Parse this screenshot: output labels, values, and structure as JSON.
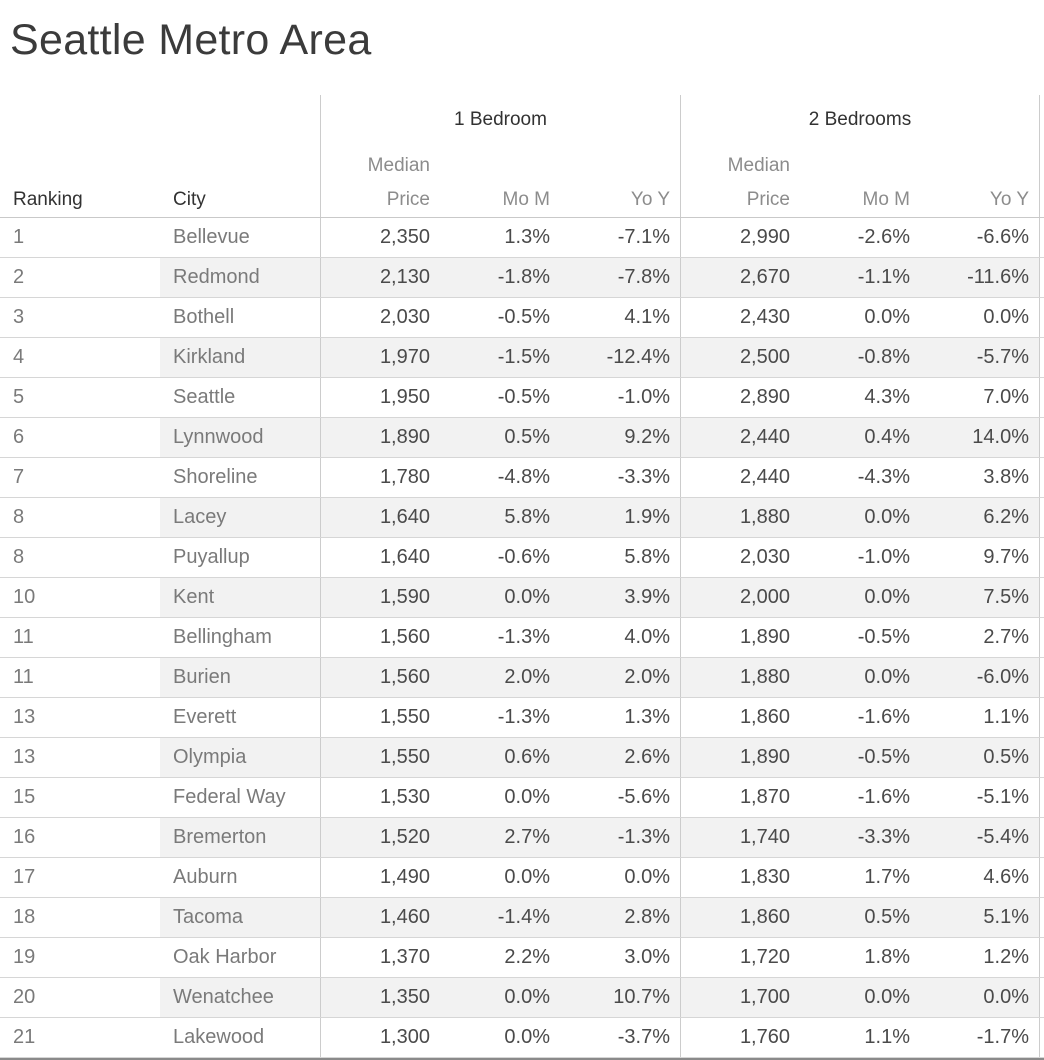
{
  "title": "Seattle Metro Area",
  "labels": {
    "ranking": "Ranking",
    "city": "City",
    "median": "Median",
    "price": "Price",
    "mom": "Mo M",
    "yoy": "Yo Y"
  },
  "chart_data": {
    "type": "table",
    "title": "Seattle Metro Area",
    "column_groups": [
      {
        "label": "1 Bedroom",
        "columns": [
          "Median Price",
          "Mo M",
          "Yo Y"
        ]
      },
      {
        "label": "2 Bedrooms",
        "columns": [
          "Median Price",
          "Mo M",
          "Yo Y"
        ]
      }
    ],
    "row_header_columns": [
      "Ranking",
      "City"
    ],
    "rows": [
      {
        "rank": "1",
        "city": "Bellevue",
        "p1": "2,350",
        "mom1": "1.3%",
        "yoy1": "-7.1%",
        "p2": "2,990",
        "mom2": "-2.6%",
        "yoy2": "-6.6%"
      },
      {
        "rank": "2",
        "city": "Redmond",
        "p1": "2,130",
        "mom1": "-1.8%",
        "yoy1": "-7.8%",
        "p2": "2,670",
        "mom2": "-1.1%",
        "yoy2": "-11.6%"
      },
      {
        "rank": "3",
        "city": "Bothell",
        "p1": "2,030",
        "mom1": "-0.5%",
        "yoy1": "4.1%",
        "p2": "2,430",
        "mom2": "0.0%",
        "yoy2": "0.0%"
      },
      {
        "rank": "4",
        "city": "Kirkland",
        "p1": "1,970",
        "mom1": "-1.5%",
        "yoy1": "-12.4%",
        "p2": "2,500",
        "mom2": "-0.8%",
        "yoy2": "-5.7%"
      },
      {
        "rank": "5",
        "city": "Seattle",
        "p1": "1,950",
        "mom1": "-0.5%",
        "yoy1": "-1.0%",
        "p2": "2,890",
        "mom2": "4.3%",
        "yoy2": "7.0%"
      },
      {
        "rank": "6",
        "city": "Lynnwood",
        "p1": "1,890",
        "mom1": "0.5%",
        "yoy1": "9.2%",
        "p2": "2,440",
        "mom2": "0.4%",
        "yoy2": "14.0%"
      },
      {
        "rank": "7",
        "city": "Shoreline",
        "p1": "1,780",
        "mom1": "-4.8%",
        "yoy1": "-3.3%",
        "p2": "2,440",
        "mom2": "-4.3%",
        "yoy2": "3.8%"
      },
      {
        "rank": "8",
        "city": "Lacey",
        "p1": "1,640",
        "mom1": "5.8%",
        "yoy1": "1.9%",
        "p2": "1,880",
        "mom2": "0.0%",
        "yoy2": "6.2%"
      },
      {
        "rank": "8",
        "city": "Puyallup",
        "p1": "1,640",
        "mom1": "-0.6%",
        "yoy1": "5.8%",
        "p2": "2,030",
        "mom2": "-1.0%",
        "yoy2": "9.7%"
      },
      {
        "rank": "10",
        "city": "Kent",
        "p1": "1,590",
        "mom1": "0.0%",
        "yoy1": "3.9%",
        "p2": "2,000",
        "mom2": "0.0%",
        "yoy2": "7.5%"
      },
      {
        "rank": "11",
        "city": "Bellingham",
        "p1": "1,560",
        "mom1": "-1.3%",
        "yoy1": "4.0%",
        "p2": "1,890",
        "mom2": "-0.5%",
        "yoy2": "2.7%"
      },
      {
        "rank": "11",
        "city": "Burien",
        "p1": "1,560",
        "mom1": "2.0%",
        "yoy1": "2.0%",
        "p2": "1,880",
        "mom2": "0.0%",
        "yoy2": "-6.0%"
      },
      {
        "rank": "13",
        "city": "Everett",
        "p1": "1,550",
        "mom1": "-1.3%",
        "yoy1": "1.3%",
        "p2": "1,860",
        "mom2": "-1.6%",
        "yoy2": "1.1%"
      },
      {
        "rank": "13",
        "city": "Olympia",
        "p1": "1,550",
        "mom1": "0.6%",
        "yoy1": "2.6%",
        "p2": "1,890",
        "mom2": "-0.5%",
        "yoy2": "0.5%"
      },
      {
        "rank": "15",
        "city": "Federal Way",
        "p1": "1,530",
        "mom1": "0.0%",
        "yoy1": "-5.6%",
        "p2": "1,870",
        "mom2": "-1.6%",
        "yoy2": "-5.1%"
      },
      {
        "rank": "16",
        "city": "Bremerton",
        "p1": "1,520",
        "mom1": "2.7%",
        "yoy1": "-1.3%",
        "p2": "1,740",
        "mom2": "-3.3%",
        "yoy2": "-5.4%"
      },
      {
        "rank": "17",
        "city": "Auburn",
        "p1": "1,490",
        "mom1": "0.0%",
        "yoy1": "0.0%",
        "p2": "1,830",
        "mom2": "1.7%",
        "yoy2": "4.6%"
      },
      {
        "rank": "18",
        "city": "Tacoma",
        "p1": "1,460",
        "mom1": "-1.4%",
        "yoy1": "2.8%",
        "p2": "1,860",
        "mom2": "0.5%",
        "yoy2": "5.1%"
      },
      {
        "rank": "19",
        "city": "Oak Harbor",
        "p1": "1,370",
        "mom1": "2.2%",
        "yoy1": "3.0%",
        "p2": "1,720",
        "mom2": "1.8%",
        "yoy2": "1.2%"
      },
      {
        "rank": "20",
        "city": "Wenatchee",
        "p1": "1,350",
        "mom1": "0.0%",
        "yoy1": "10.7%",
        "p2": "1,700",
        "mom2": "0.0%",
        "yoy2": "0.0%"
      },
      {
        "rank": "21",
        "city": "Lakewood",
        "p1": "1,300",
        "mom1": "0.0%",
        "yoy1": "-3.7%",
        "p2": "1,760",
        "mom2": "1.1%",
        "yoy2": "-1.7%"
      }
    ]
  },
  "colors": {
    "title_text": "#3b3b3b",
    "header_dark_text": "#323232",
    "header_gray_text": "#8c8c8c",
    "dim_text": "#7a7a7a",
    "value_text": "#4a4a4a",
    "band": "#f2f2f2",
    "grid_line": "#d6d6d6",
    "header_line": "#c9c9c9",
    "divider": "#cccccc",
    "bottom_border": "#8a8a8a"
  }
}
